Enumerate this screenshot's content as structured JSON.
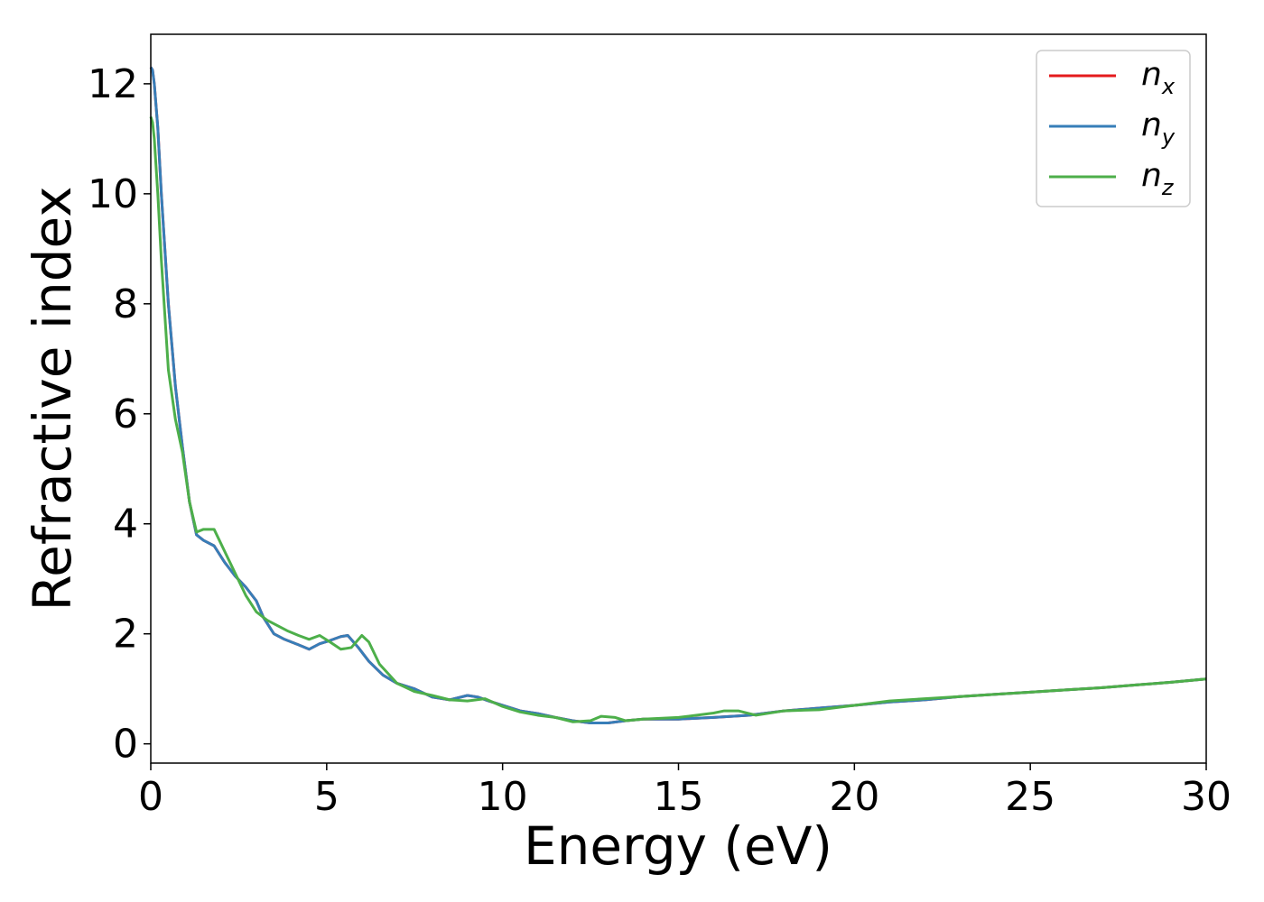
{
  "chart_data": {
    "type": "line",
    "xlabel": "Energy (eV)",
    "ylabel": "Refractive index",
    "xlim": [
      0,
      30
    ],
    "ylim": [
      -0.35,
      12.9
    ],
    "xticks": [
      0,
      5,
      10,
      15,
      20,
      25,
      30
    ],
    "yticks": [
      0,
      2,
      4,
      6,
      8,
      10,
      12
    ],
    "grid": false,
    "legend_position": "top-right",
    "series": [
      {
        "name": "n_x",
        "label_main": "n",
        "label_sub": "x",
        "color": "#e41a1c",
        "x": [
          0,
          0.05,
          0.1,
          0.2,
          0.3,
          0.5,
          0.7,
          0.9,
          1.1,
          1.3,
          1.5,
          1.8,
          2.1,
          2.4,
          2.7,
          3.0,
          3.2,
          3.5,
          3.8,
          4.2,
          4.5,
          4.8,
          5.1,
          5.4,
          5.6,
          5.9,
          6.2,
          6.6,
          7.0,
          7.5,
          8.0,
          8.5,
          9.0,
          9.3,
          9.6,
          10.0,
          10.5,
          11.0,
          11.5,
          12.0,
          12.5,
          13.0,
          13.5,
          14.0,
          15.0,
          16.0,
          17.0,
          18.0,
          19.0,
          20.0,
          21.0,
          22.0,
          23.0,
          24.0,
          25.0,
          26.0,
          27.0,
          28.0,
          29.0,
          30.0
        ],
        "y": [
          12.3,
          12.25,
          12.0,
          11.2,
          10.0,
          8.0,
          6.5,
          5.4,
          4.4,
          3.8,
          3.7,
          3.6,
          3.3,
          3.05,
          2.85,
          2.6,
          2.3,
          2.0,
          1.9,
          1.8,
          1.72,
          1.82,
          1.88,
          1.95,
          1.97,
          1.75,
          1.5,
          1.25,
          1.1,
          1.0,
          0.85,
          0.8,
          0.88,
          0.85,
          0.78,
          0.7,
          0.6,
          0.55,
          0.48,
          0.42,
          0.38,
          0.38,
          0.42,
          0.45,
          0.45,
          0.48,
          0.52,
          0.6,
          0.65,
          0.7,
          0.76,
          0.8,
          0.86,
          0.9,
          0.94,
          0.98,
          1.02,
          1.07,
          1.12,
          1.18
        ]
      },
      {
        "name": "n_y",
        "label_main": "n",
        "label_sub": "y",
        "color": "#377eb8",
        "x": [
          0,
          0.05,
          0.1,
          0.2,
          0.3,
          0.5,
          0.7,
          0.9,
          1.1,
          1.3,
          1.5,
          1.8,
          2.1,
          2.4,
          2.7,
          3.0,
          3.2,
          3.5,
          3.8,
          4.2,
          4.5,
          4.8,
          5.1,
          5.4,
          5.6,
          5.9,
          6.2,
          6.6,
          7.0,
          7.5,
          8.0,
          8.5,
          9.0,
          9.3,
          9.6,
          10.0,
          10.5,
          11.0,
          11.5,
          12.0,
          12.5,
          13.0,
          13.5,
          14.0,
          15.0,
          16.0,
          17.0,
          18.0,
          19.0,
          20.0,
          21.0,
          22.0,
          23.0,
          24.0,
          25.0,
          26.0,
          27.0,
          28.0,
          29.0,
          30.0
        ],
        "y": [
          12.3,
          12.25,
          12.0,
          11.2,
          10.0,
          8.0,
          6.5,
          5.4,
          4.4,
          3.8,
          3.7,
          3.6,
          3.3,
          3.05,
          2.85,
          2.6,
          2.3,
          2.0,
          1.9,
          1.8,
          1.72,
          1.82,
          1.88,
          1.95,
          1.97,
          1.75,
          1.5,
          1.25,
          1.1,
          1.0,
          0.85,
          0.8,
          0.88,
          0.85,
          0.78,
          0.7,
          0.6,
          0.55,
          0.48,
          0.42,
          0.38,
          0.38,
          0.42,
          0.45,
          0.45,
          0.48,
          0.52,
          0.6,
          0.65,
          0.7,
          0.76,
          0.8,
          0.86,
          0.9,
          0.94,
          0.98,
          1.02,
          1.07,
          1.12,
          1.18
        ]
      },
      {
        "name": "n_z",
        "label_main": "n",
        "label_sub": "z",
        "color": "#4daf4a",
        "x": [
          0,
          0.05,
          0.1,
          0.2,
          0.3,
          0.5,
          0.7,
          0.9,
          1.1,
          1.3,
          1.5,
          1.8,
          2.1,
          2.4,
          2.7,
          3.0,
          3.3,
          3.6,
          3.9,
          4.2,
          4.5,
          4.8,
          5.1,
          5.4,
          5.7,
          6.0,
          6.2,
          6.5,
          7.0,
          7.5,
          8.0,
          8.5,
          9.0,
          9.5,
          10.0,
          10.5,
          11.0,
          11.5,
          12.0,
          12.5,
          12.8,
          13.2,
          13.5,
          14.0,
          15.0,
          16.0,
          16.3,
          16.7,
          17.2,
          18.0,
          19.0,
          20.0,
          21.0,
          22.0,
          23.0,
          24.0,
          25.0,
          26.0,
          27.0,
          28.0,
          29.0,
          30.0
        ],
        "y": [
          11.4,
          11.3,
          11.0,
          10.0,
          8.8,
          6.8,
          5.9,
          5.3,
          4.4,
          3.85,
          3.9,
          3.9,
          3.5,
          3.1,
          2.7,
          2.4,
          2.25,
          2.15,
          2.05,
          1.97,
          1.9,
          1.97,
          1.85,
          1.72,
          1.75,
          1.97,
          1.85,
          1.45,
          1.1,
          0.95,
          0.88,
          0.8,
          0.78,
          0.82,
          0.68,
          0.58,
          0.52,
          0.48,
          0.4,
          0.42,
          0.5,
          0.48,
          0.42,
          0.45,
          0.48,
          0.56,
          0.6,
          0.6,
          0.52,
          0.6,
          0.62,
          0.7,
          0.78,
          0.82,
          0.86,
          0.9,
          0.94,
          0.98,
          1.02,
          1.07,
          1.12,
          1.18
        ]
      }
    ]
  }
}
